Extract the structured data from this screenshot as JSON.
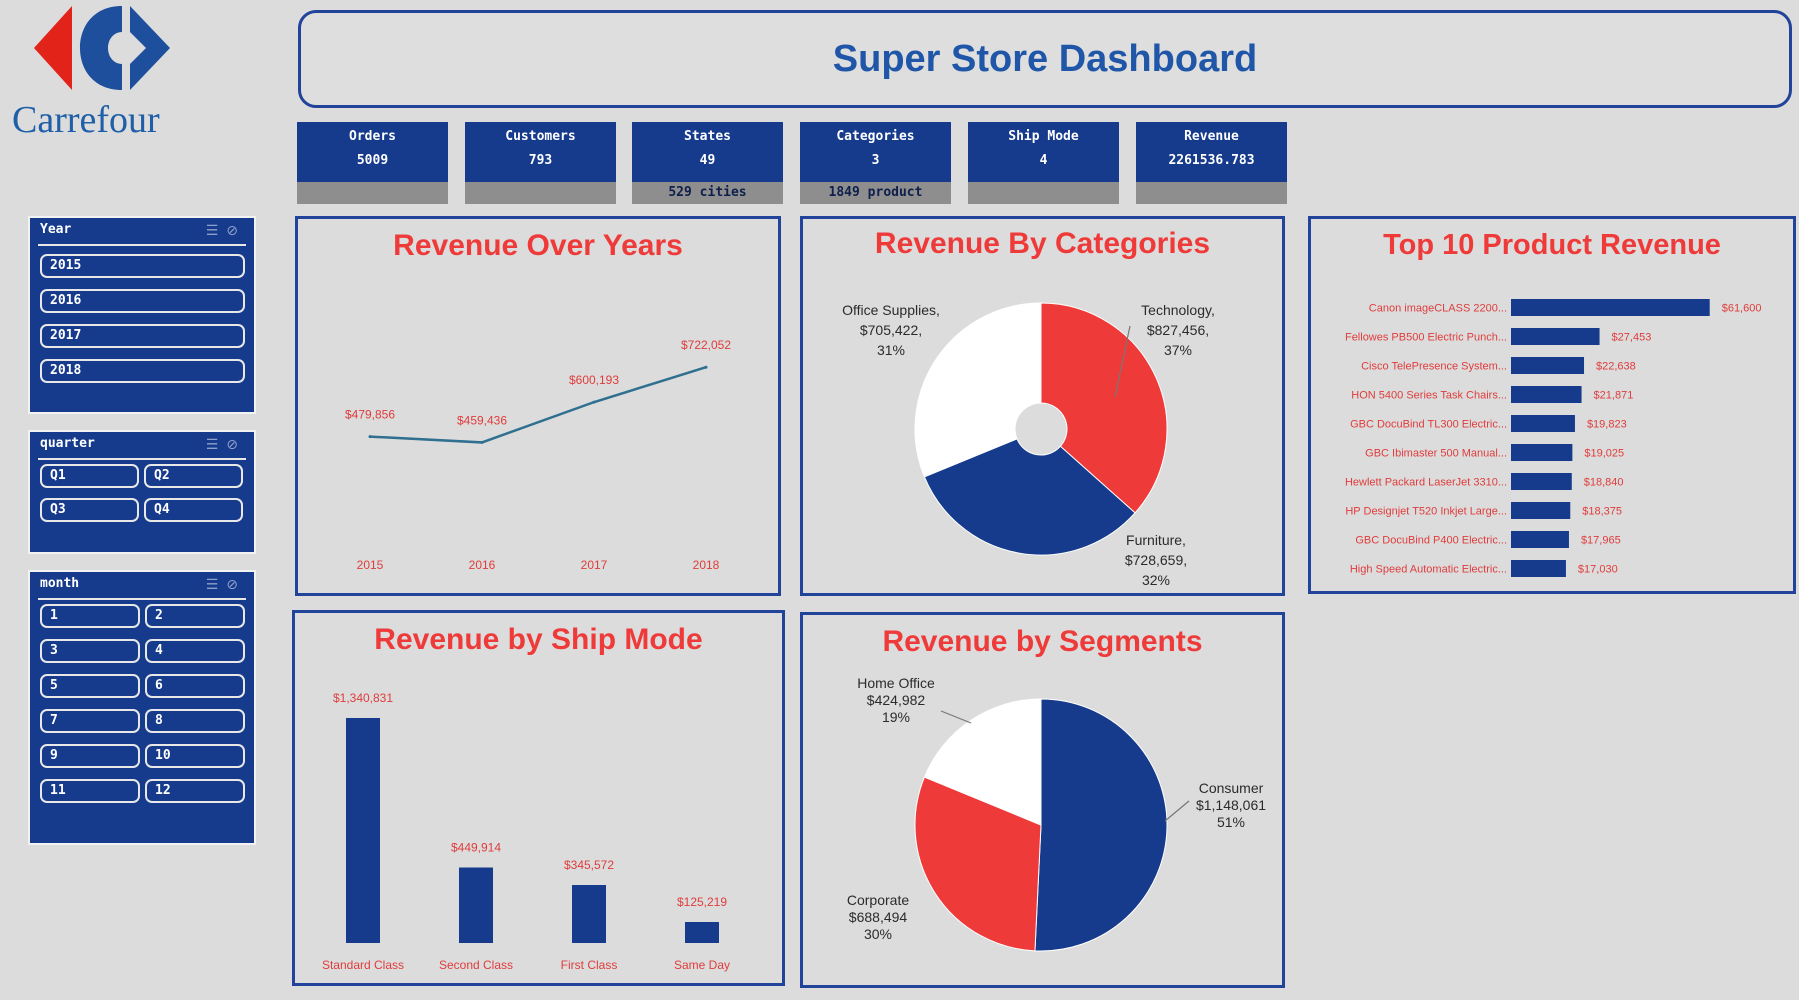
{
  "brand": {
    "name": "Carrefour"
  },
  "header": {
    "title": "Super Store Dashboard"
  },
  "kpis": [
    {
      "label": "Orders",
      "value": "5009",
      "foot": ""
    },
    {
      "label": "Customers",
      "value": "793",
      "foot": ""
    },
    {
      "label": "States",
      "value": "49",
      "foot": "529 cities"
    },
    {
      "label": "Categories",
      "value": "3",
      "foot": "1849 product"
    },
    {
      "label": "Ship Mode",
      "value": "4",
      "foot": ""
    },
    {
      "label": "Revenue",
      "value": "2261536.783",
      "foot": ""
    }
  ],
  "slicers": {
    "year": {
      "title": "Year",
      "items": [
        "2015",
        "2016",
        "2017",
        "2018"
      ]
    },
    "quarter": {
      "title": "quarter",
      "items": [
        "Q1",
        "Q2",
        "Q3",
        "Q4"
      ]
    },
    "month": {
      "title": "month",
      "items": [
        "1",
        "2",
        "3",
        "4",
        "5",
        "6",
        "7",
        "8",
        "9",
        "10",
        "11",
        "12"
      ]
    }
  },
  "colors": {
    "navy": "#163b8d",
    "red": "#ef3a3a",
    "white": "#ffffff",
    "line": "#2f6f8f"
  },
  "chart_data": [
    {
      "id": "revenue-over-years",
      "type": "line",
      "title": "Revenue Over  Years",
      "x": [
        "2015",
        "2016",
        "2017",
        "2018"
      ],
      "values": [
        479856,
        459436,
        600193,
        722052
      ],
      "data_labels": [
        "$479,856",
        "$459,436",
        "$600,193",
        "$722,052"
      ],
      "ylim": [
        0,
        1100000
      ],
      "grid": false,
      "legend": "none"
    },
    {
      "id": "revenue-by-categories",
      "type": "pie",
      "title": "Revenue By Categories",
      "categories": [
        "Technology",
        "Furniture",
        "Office Supplies"
      ],
      "values": [
        827456,
        728659,
        705422
      ],
      "percents": [
        "37%",
        "32%",
        "31%"
      ],
      "data_labels": [
        "$827,456",
        "$728,659",
        "$705,422"
      ],
      "donut": true,
      "legend": "none"
    },
    {
      "id": "top-10-product-revenue",
      "type": "bar",
      "orientation": "horizontal",
      "title": "Top 10 Product Revenue",
      "categories": [
        "Canon imageCLASS 2200...",
        "Fellowes PB500 Electric Punch...",
        "Cisco TelePresence System...",
        "HON 5400 Series Task Chairs...",
        "GBC DocuBind TL300 Electric...",
        "GBC Ibimaster 500 Manual...",
        "Hewlett Packard LaserJet 3310...",
        "HP Designjet T520 Inkjet Large...",
        "GBC DocuBind P400 Electric...",
        "High Speed Automatic Electric..."
      ],
      "values": [
        61600,
        27453,
        22638,
        21871,
        19823,
        19025,
        18840,
        18375,
        17965,
        17030
      ],
      "data_labels": [
        "$61,600",
        "$27,453",
        "$22,638",
        "$21,871",
        "$19,823",
        "$19,025",
        "$18,840",
        "$18,375",
        "$17,965",
        "$17,030"
      ],
      "xlim": [
        0,
        62000
      ],
      "legend": "none"
    },
    {
      "id": "revenue-by-ship-mode",
      "type": "bar",
      "title": "Revenue by Ship Mode",
      "categories": [
        "Standard Class",
        "Second Class",
        "First Class",
        "Same Day"
      ],
      "values": [
        1340831,
        449914,
        345572,
        125219
      ],
      "data_labels": [
        "$1,340,831",
        "$449,914",
        "$345,572",
        "$125,219"
      ],
      "ylim": [
        0,
        1340831
      ],
      "legend": "none"
    },
    {
      "id": "revenue-by-segments",
      "type": "pie",
      "title": "Revenue by Segments",
      "categories": [
        "Consumer",
        "Corporate",
        "Home Office"
      ],
      "values": [
        1148061,
        688494,
        424982
      ],
      "percents": [
        "51%",
        "30%",
        "19%"
      ],
      "data_labels": [
        "$1,148,061",
        "$688,494",
        "$424,982"
      ],
      "legend": "none"
    }
  ]
}
